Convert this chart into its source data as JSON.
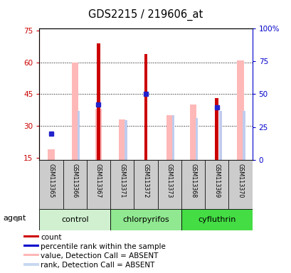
{
  "title": "GDS2215 / 219606_at",
  "samples": [
    "GSM113365",
    "GSM113366",
    "GSM113367",
    "GSM113371",
    "GSM113372",
    "GSM113373",
    "GSM113368",
    "GSM113369",
    "GSM113370"
  ],
  "groups": [
    {
      "label": "control",
      "indices": [
        0,
        1,
        2
      ]
    },
    {
      "label": "chlorpyrifos",
      "indices": [
        3,
        4,
        5
      ]
    },
    {
      "label": "cyfluthrin",
      "indices": [
        6,
        7,
        8
      ]
    }
  ],
  "group_colors": [
    "#d0f0d0",
    "#90e890",
    "#44dd44"
  ],
  "ylim_left": [
    14,
    76
  ],
  "yticks_left": [
    15,
    30,
    45,
    60,
    75
  ],
  "ylim_right": [
    0,
    100
  ],
  "yticks_right": [
    0,
    25,
    50,
    75,
    100
  ],
  "red_bars": [
    null,
    null,
    69,
    null,
    64,
    null,
    null,
    43,
    null
  ],
  "blue_squares_pct": [
    20,
    null,
    42,
    null,
    50,
    null,
    null,
    40,
    null
  ],
  "pink_bars": [
    19,
    60,
    38,
    33,
    null,
    35,
    40,
    null,
    61
  ],
  "lavender_bars_pct": [
    null,
    37,
    null,
    30,
    null,
    34,
    32,
    37,
    37
  ],
  "left_axis_color": "#cc0000",
  "right_axis_color": "#0000cc",
  "legend_items": [
    {
      "color": "#cc0000",
      "marker": "s",
      "label": "count"
    },
    {
      "color": "#0000cc",
      "marker": "s",
      "label": "percentile rank within the sample"
    },
    {
      "color": "#ffb6b6",
      "marker": "s",
      "label": "value, Detection Call = ABSENT"
    },
    {
      "color": "#c8d8f0",
      "marker": "s",
      "label": "rank, Detection Call = ABSENT"
    }
  ]
}
